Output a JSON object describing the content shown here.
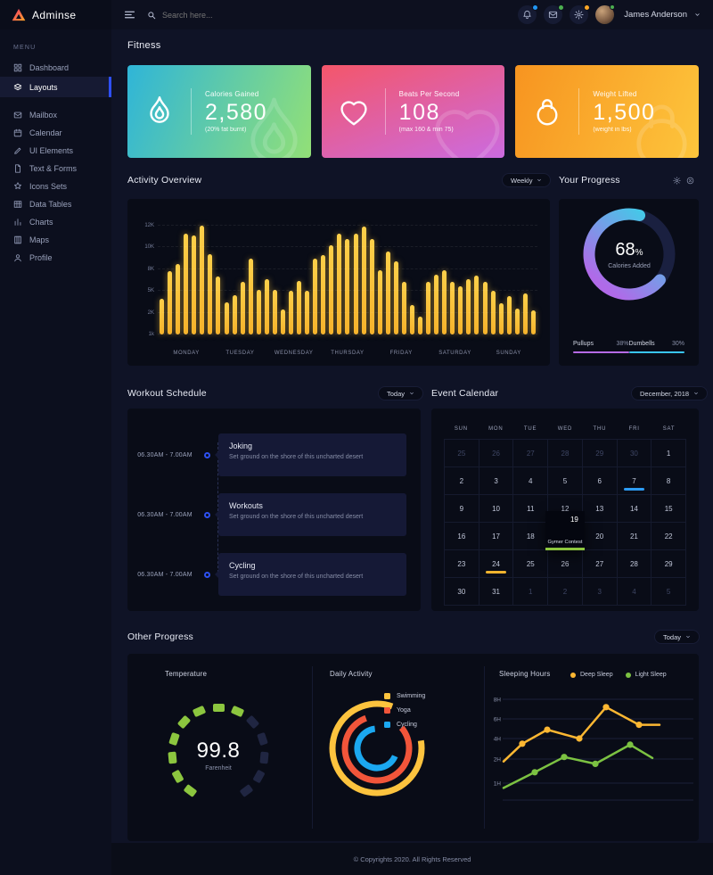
{
  "app": {
    "name": "Adminse"
  },
  "topbar": {
    "search_placeholder": "Search here...",
    "user_name": "James Anderson",
    "badges": [
      {
        "icon": "bell",
        "color": "#2196f3"
      },
      {
        "icon": "mail",
        "color": "#4caf50"
      },
      {
        "icon": "gear",
        "color": "#ffa726"
      }
    ]
  },
  "sidebar": {
    "menu_label": "MENU",
    "items": [
      {
        "icon": "grid",
        "label": "Dashboard",
        "active": false,
        "gap_after": false
      },
      {
        "icon": "layers",
        "label": "Layouts",
        "active": true,
        "gap_after": true
      },
      {
        "icon": "mail",
        "label": "Mailbox",
        "active": false,
        "gap_after": false
      },
      {
        "icon": "calendar",
        "label": "Calendar",
        "active": false,
        "gap_after": false
      },
      {
        "icon": "pen",
        "label": "UI Elements",
        "active": false,
        "gap_after": false
      },
      {
        "icon": "file",
        "label": "Text & Forms",
        "active": false,
        "gap_after": false
      },
      {
        "icon": "star",
        "label": "Icons Sets",
        "active": false,
        "gap_after": false
      },
      {
        "icon": "table",
        "label": "Data Tables",
        "active": false,
        "gap_after": false
      },
      {
        "icon": "chart",
        "label": "Charts",
        "active": false,
        "gap_after": false
      },
      {
        "icon": "map",
        "label": "Maps",
        "active": false,
        "gap_after": false
      },
      {
        "icon": "user",
        "label": "Profile",
        "active": false,
        "gap_after": false
      }
    ]
  },
  "page": {
    "title": "Fitness"
  },
  "stat_cards": [
    {
      "icon": "flame",
      "label": "Calories Gained",
      "value": "2,580",
      "note": "(20% fat burnt)",
      "gradient": [
        "#2fb5d8",
        "#92e077"
      ],
      "angle": "110deg"
    },
    {
      "icon": "heart",
      "label": "Beats Per Second",
      "value": "108",
      "note": "(max 160 & min 75)",
      "gradient": [
        "#f4566a",
        "#cb6be0"
      ],
      "angle": "160deg"
    },
    {
      "icon": "kettlebell",
      "label": "Weight Lifted",
      "value": "1,500",
      "note": "(weight in lbs)",
      "gradient": [
        "#f79420",
        "#fdc53c"
      ],
      "angle": "110deg"
    }
  ],
  "sections": {
    "activity": {
      "title": "Activity Overview",
      "filter": "Weekly"
    },
    "progress": {
      "title": "Your Progress",
      "value": "68",
      "unit": "%",
      "label": "Calories Added",
      "legend": [
        {
          "label": "Pullups",
          "value": "38%",
          "color": "#b66ae5"
        },
        {
          "label": "Dumbells",
          "value": "30%",
          "color": "#39c5f3"
        }
      ]
    },
    "schedule": {
      "title": "Workout Schedule",
      "filter": "Today",
      "items": [
        {
          "time": "06.30AM - 7.00AM",
          "title": "Joking",
          "desc": "Set ground on the shore of this uncharted desert"
        },
        {
          "time": "06.30AM - 7.00AM",
          "title": "Workouts",
          "desc": "Set ground on the shore of this uncharted desert"
        },
        {
          "time": "06.30AM - 7.00AM",
          "title": "Cycling",
          "desc": "Set ground on the shore of this uncharted desert"
        }
      ]
    },
    "calendar": {
      "title": "Event Calendar",
      "filter": "December, 2018",
      "day_names": [
        "SUN",
        "MON",
        "TUE",
        "WED",
        "THU",
        "FRI",
        "SAT"
      ],
      "weeks": [
        [
          {
            "d": "25",
            "muted": true
          },
          {
            "d": "26",
            "muted": true
          },
          {
            "d": "27",
            "muted": true
          },
          {
            "d": "28",
            "muted": true
          },
          {
            "d": "29",
            "muted": true
          },
          {
            "d": "30",
            "muted": true
          },
          {
            "d": "1"
          }
        ],
        [
          {
            "d": "2"
          },
          {
            "d": "3"
          },
          {
            "d": "4"
          },
          {
            "d": "5"
          },
          {
            "d": "6"
          },
          {
            "d": "7",
            "underline": "#2d9cf4"
          },
          {
            "d": "8"
          }
        ],
        [
          {
            "d": "9"
          },
          {
            "d": "10"
          },
          {
            "d": "11"
          },
          {
            "d": "12"
          },
          {
            "d": "13"
          },
          {
            "d": "14"
          },
          {
            "d": "15"
          }
        ],
        [
          {
            "d": "16"
          },
          {
            "d": "17"
          },
          {
            "d": "18"
          },
          {
            "d": "19",
            "event": "Gymer Contest",
            "underline": "#8cc63f"
          },
          {
            "d": "20"
          },
          {
            "d": "21"
          },
          {
            "d": "22"
          }
        ],
        [
          {
            "d": "23"
          },
          {
            "d": "24",
            "underline": "#f0b32e"
          },
          {
            "d": "25"
          },
          {
            "d": "26"
          },
          {
            "d": "27"
          },
          {
            "d": "28"
          },
          {
            "d": "29"
          }
        ],
        [
          {
            "d": "30"
          },
          {
            "d": "31"
          },
          {
            "d": "1",
            "muted": true
          },
          {
            "d": "2",
            "muted": true
          },
          {
            "d": "3",
            "muted": true
          },
          {
            "d": "4",
            "muted": true
          },
          {
            "d": "5",
            "muted": true
          }
        ]
      ]
    },
    "other": {
      "title": "Other Progress",
      "filter": "Today"
    }
  },
  "footer": {
    "copyright": "© Copyrights 2020. All Rights Reserved"
  },
  "chart_data": [
    {
      "id": "activity-overview",
      "type": "bar",
      "title": "Activity Overview",
      "x_categories": [
        "MONDAY",
        "TUESDAY",
        "WEDNESDAY",
        "THURSDAY",
        "FRIDAY",
        "SATURDAY",
        "SUNDAY"
      ],
      "y_ticks": [
        "1k",
        "2K",
        "5K",
        "8K",
        "10K",
        "12K"
      ],
      "y_tick_values": [
        1,
        2,
        5,
        8,
        10,
        12
      ],
      "bar_color": "#f9c23c",
      "values_k": [
        3.9,
        7.7,
        8.5,
        11.3,
        11.1,
        12,
        9.4,
        7.0,
        3.4,
        4.4,
        6.3,
        9.0,
        5.1,
        6.6,
        5.1,
        2.4,
        5.0,
        6.4,
        5.0,
        9.0,
        9.3,
        10.2,
        11.3,
        10.8,
        11.3,
        11.9,
        10.8,
        7.8,
        9.6,
        8.7,
        6.3,
        3.1,
        1.8,
        6.2,
        7.2,
        7.8,
        6.3,
        5.6,
        6.6,
        7.1,
        6.3,
        5.0,
        3.3,
        4.3,
        2.6,
        4.7,
        2.3
      ]
    },
    {
      "id": "your-progress",
      "type": "donut",
      "title": "Your Progress",
      "percent": 68,
      "label": "Calories Added",
      "colors": [
        "#45c8e8",
        "#b06ae8"
      ],
      "track_color": "#1a2040"
    },
    {
      "id": "temperature",
      "type": "gauge",
      "title": "Temperature",
      "value": "99.8",
      "unit": "Farenheit",
      "segments": 13,
      "active_segments": 8,
      "active_color": "#8cc63f",
      "inactive_color": "#202642"
    },
    {
      "id": "daily-activity",
      "type": "rings",
      "title": "Daily Activity",
      "rings": [
        {
          "name": "Swimming",
          "color": "#fcc33e",
          "sweep_deg": 300,
          "start_deg": -10,
          "radius": 50
        },
        {
          "name": "Yoga",
          "color": "#f1553a",
          "sweep_deg": 290,
          "start_deg": -40,
          "radius": 36
        },
        {
          "name": "Cycling",
          "color": "#1ba8f0",
          "sweep_deg": 240,
          "start_deg": 25,
          "radius": 22
        }
      ]
    },
    {
      "id": "sleeping-hours",
      "type": "line",
      "title": "Sleeping Hours",
      "y_ticks": [
        "8H",
        "6H",
        "4H",
        "2H",
        "1H"
      ],
      "y_tick_hours": [
        8,
        6,
        4,
        2,
        1
      ],
      "series": [
        {
          "name": "Deep Sleep",
          "color": "#fcb732",
          "values_h": [
            1.9,
            3.5,
            4.9,
            4.0,
            7.2,
            5.4,
            5.4
          ]
        },
        {
          "name": "Light Sleep",
          "color": "#7cc242",
          "values_h": [
            0.8,
            1.45,
            2.2,
            1.8,
            3.4,
            2.1
          ]
        }
      ]
    }
  ]
}
